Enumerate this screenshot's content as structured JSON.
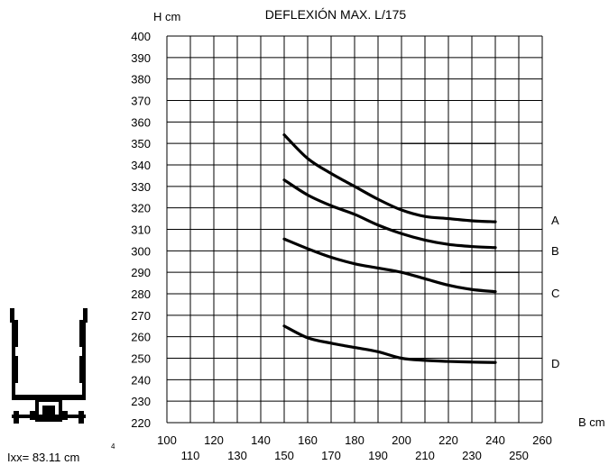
{
  "chart_data": {
    "type": "line",
    "title": "DEFLEXIÓN MAX. L/175",
    "ylabel": "H cm",
    "xlabel": "B cm",
    "ylim": [
      220,
      400
    ],
    "xlim": [
      100,
      260
    ],
    "y_ticks": [
      "220",
      "230",
      "240",
      "250",
      "260",
      "270",
      "280",
      "290",
      "300",
      "310",
      "320",
      "330",
      "340",
      "350",
      "360",
      "370",
      "380",
      "390",
      "400"
    ],
    "x_ticks_upper": [
      "100",
      "120",
      "140",
      "160",
      "180",
      "200",
      "220",
      "240",
      "260"
    ],
    "x_ticks_lower": [
      "110",
      "130",
      "150",
      "170",
      "190",
      "210",
      "230",
      "250"
    ],
    "grid": true,
    "x": [
      150,
      160,
      170,
      180,
      190,
      200,
      210,
      220,
      230,
      240
    ],
    "series": [
      {
        "name": "A",
        "values": [
          354,
          343,
          336,
          330,
          324,
          319,
          316,
          315,
          314,
          313.5
        ]
      },
      {
        "name": "B",
        "values": [
          333,
          326,
          321,
          317,
          312,
          308,
          305,
          303,
          302,
          301.5
        ]
      },
      {
        "name": "C",
        "values": [
          305.5,
          301,
          297,
          294,
          292,
          290,
          287,
          284,
          282,
          281
        ]
      },
      {
        "name": "D",
        "values": [
          265,
          259.5,
          257,
          255,
          253,
          250,
          249,
          248.5,
          248.2,
          248
        ]
      }
    ],
    "extra_marks": [
      {
        "x": [
          200,
          240
        ],
        "y": [
          350,
          350
        ]
      },
      {
        "x": [
          225,
          250
        ],
        "y": [
          290,
          290
        ]
      }
    ]
  },
  "profile": {
    "ixx_label": "Ixx= 83.11 cm",
    "ixx_exponent": "4"
  }
}
